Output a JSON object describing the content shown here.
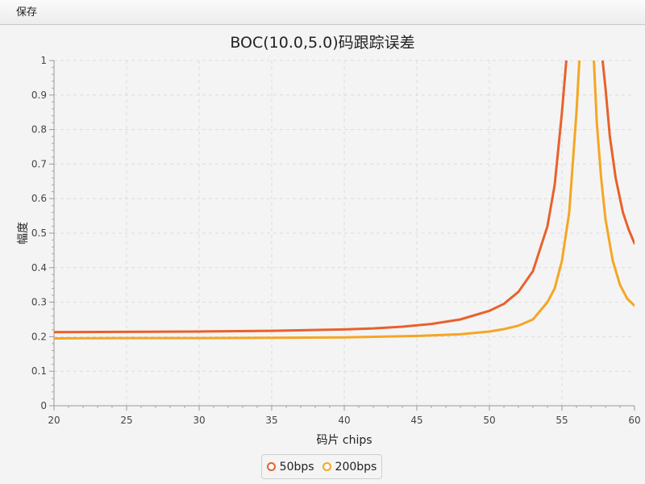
{
  "menu": {
    "save_label": "保存"
  },
  "chart_data": {
    "type": "line",
    "title": "BOC(10.0,5.0)码跟踪误差",
    "xlabel": "码片 chips",
    "ylabel": "幅度",
    "xlim": [
      20,
      60
    ],
    "ylim": [
      0,
      1
    ],
    "x_ticks": [
      "20",
      "25",
      "30",
      "35",
      "40",
      "45",
      "50",
      "55",
      "60"
    ],
    "y_ticks": [
      "0",
      "0.1",
      "0.2",
      "0.3",
      "0.4",
      "0.5",
      "0.6",
      "0.7",
      "0.8",
      "0.9",
      "1"
    ],
    "grid": true,
    "legend_position": "bottom",
    "series": [
      {
        "name": "50bps",
        "color": "#e8612c",
        "x": [
          20,
          25,
          30,
          35,
          40,
          42,
          44,
          46,
          48,
          50,
          51,
          52,
          53,
          54,
          54.5,
          55,
          55.3,
          57.8,
          58,
          58.3,
          58.7,
          59.2,
          59.6,
          60
        ],
        "y": [
          0.213,
          0.214,
          0.215,
          0.217,
          0.221,
          0.224,
          0.229,
          0.237,
          0.25,
          0.275,
          0.295,
          0.33,
          0.39,
          0.52,
          0.64,
          0.85,
          1.0,
          1.0,
          0.92,
          0.78,
          0.66,
          0.56,
          0.51,
          0.47
        ]
      },
      {
        "name": "200bps",
        "color": "#f5a623",
        "x": [
          20,
          25,
          30,
          35,
          40,
          45,
          48,
          50,
          51,
          52,
          53,
          54,
          54.5,
          55,
          55.5,
          56,
          56.2,
          57.2,
          57.4,
          57.7,
          58,
          58.5,
          59,
          59.5,
          60
        ],
        "y": [
          0.195,
          0.196,
          0.196,
          0.197,
          0.198,
          0.202,
          0.207,
          0.215,
          0.222,
          0.232,
          0.25,
          0.3,
          0.34,
          0.42,
          0.56,
          0.85,
          1.0,
          1.0,
          0.82,
          0.66,
          0.54,
          0.42,
          0.35,
          0.31,
          0.29
        ]
      }
    ]
  }
}
